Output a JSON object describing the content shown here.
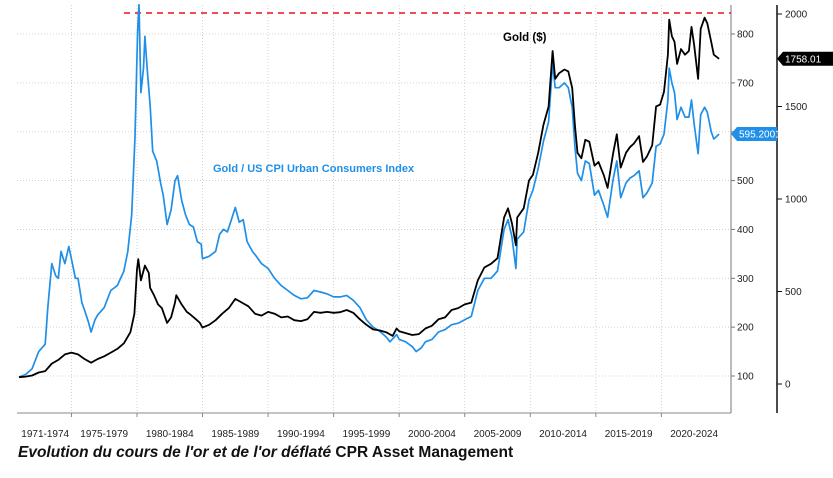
{
  "chart_data": {
    "type": "line",
    "caption_italic": "Evolution du cours de l'or et de l'or déflaté",
    "caption_source": "CPR Asset Management",
    "x_categories": [
      "1971-1974",
      "1975-1979",
      "1980-1984",
      "1985-1989",
      "1990-1994",
      "1995-1999",
      "2000-2004",
      "2005-2009",
      "2010-2014",
      "2015-2019",
      "2020-2024"
    ],
    "xlim": [
      1971,
      2024.7
    ],
    "left_axis": {
      "ticks": [
        100,
        200,
        300,
        400,
        500,
        600,
        700,
        800
      ],
      "ylim": [
        40,
        860
      ]
    },
    "right_axis": {
      "ticks": [
        0,
        500,
        1000,
        1500,
        2000
      ],
      "ylim": [
        -170,
        2025
      ]
    },
    "reference_line": {
      "value": 2000,
      "axis": "right",
      "style": "dashed",
      "color": "#e8141b"
    },
    "series": [
      {
        "name": "Gold ($)",
        "axis": "right",
        "color": "#000000",
        "last_value_label": "1758.01",
        "points": [
          [
            1971,
            37
          ],
          [
            1971.5,
            40
          ],
          [
            1972,
            46
          ],
          [
            1972.5,
            62
          ],
          [
            1973,
            70
          ],
          [
            1973.5,
            110
          ],
          [
            1974,
            130
          ],
          [
            1974.5,
            160
          ],
          [
            1975,
            170
          ],
          [
            1975.5,
            160
          ],
          [
            1976,
            135
          ],
          [
            1976.5,
            115
          ],
          [
            1977,
            135
          ],
          [
            1977.5,
            150
          ],
          [
            1978,
            170
          ],
          [
            1978.5,
            190
          ],
          [
            1979,
            220
          ],
          [
            1979.5,
            280
          ],
          [
            1979.8,
            380
          ],
          [
            1980,
            620
          ],
          [
            1980.1,
            675
          ],
          [
            1980.3,
            560
          ],
          [
            1980.6,
            640
          ],
          [
            1980.9,
            600
          ],
          [
            1981,
            520
          ],
          [
            1981.3,
            480
          ],
          [
            1981.6,
            430
          ],
          [
            1981.9,
            410
          ],
          [
            1982,
            390
          ],
          [
            1982.3,
            330
          ],
          [
            1982.6,
            360
          ],
          [
            1982.9,
            440
          ],
          [
            1983,
            480
          ],
          [
            1983.4,
            430
          ],
          [
            1983.8,
            390
          ],
          [
            1984,
            380
          ],
          [
            1984.5,
            350
          ],
          [
            1984.8,
            330
          ],
          [
            1985,
            305
          ],
          [
            1985.5,
            320
          ],
          [
            1986,
            345
          ],
          [
            1986.5,
            380
          ],
          [
            1987,
            410
          ],
          [
            1987.5,
            460
          ],
          [
            1988,
            440
          ],
          [
            1988.5,
            420
          ],
          [
            1989,
            380
          ],
          [
            1989.5,
            370
          ],
          [
            1990,
            390
          ],
          [
            1990.5,
            380
          ],
          [
            1991,
            360
          ],
          [
            1991.5,
            365
          ],
          [
            1992,
            345
          ],
          [
            1992.5,
            340
          ],
          [
            1993,
            350
          ],
          [
            1993.5,
            390
          ],
          [
            1994,
            385
          ],
          [
            1994.5,
            390
          ],
          [
            1995,
            385
          ],
          [
            1995.5,
            388
          ],
          [
            1996,
            400
          ],
          [
            1996.5,
            385
          ],
          [
            1997,
            350
          ],
          [
            1997.5,
            320
          ],
          [
            1998,
            295
          ],
          [
            1998.5,
            290
          ],
          [
            1999,
            280
          ],
          [
            1999.5,
            260
          ],
          [
            1999.8,
            300
          ],
          [
            2000,
            285
          ],
          [
            2000.5,
            275
          ],
          [
            2001,
            265
          ],
          [
            2001.5,
            270
          ],
          [
            2002,
            300
          ],
          [
            2002.5,
            315
          ],
          [
            2003,
            350
          ],
          [
            2003.5,
            360
          ],
          [
            2004,
            400
          ],
          [
            2004.5,
            410
          ],
          [
            2005,
            430
          ],
          [
            2005.5,
            440
          ],
          [
            2006,
            560
          ],
          [
            2006.5,
            630
          ],
          [
            2007,
            650
          ],
          [
            2007.5,
            680
          ],
          [
            2008,
            900
          ],
          [
            2008.3,
            950
          ],
          [
            2008.6,
            870
          ],
          [
            2008.9,
            750
          ],
          [
            2009,
            900
          ],
          [
            2009.5,
            950
          ],
          [
            2009.9,
            1100
          ],
          [
            2010.2,
            1130
          ],
          [
            2010.6,
            1250
          ],
          [
            2011,
            1400
          ],
          [
            2011.4,
            1500
          ],
          [
            2011.7,
            1800
          ],
          [
            2011.9,
            1650
          ],
          [
            2012.2,
            1680
          ],
          [
            2012.6,
            1700
          ],
          [
            2012.9,
            1690
          ],
          [
            2013.2,
            1600
          ],
          [
            2013.4,
            1400
          ],
          [
            2013.6,
            1250
          ],
          [
            2013.9,
            1220
          ],
          [
            2014.2,
            1320
          ],
          [
            2014.5,
            1310
          ],
          [
            2014.9,
            1180
          ],
          [
            2015.2,
            1200
          ],
          [
            2015.6,
            1130
          ],
          [
            2015.9,
            1060
          ],
          [
            2016.3,
            1240
          ],
          [
            2016.6,
            1350
          ],
          [
            2016.9,
            1170
          ],
          [
            2017.3,
            1250
          ],
          [
            2017.6,
            1280
          ],
          [
            2017.9,
            1300
          ],
          [
            2018.3,
            1340
          ],
          [
            2018.6,
            1200
          ],
          [
            2018.9,
            1230
          ],
          [
            2019.3,
            1290
          ],
          [
            2019.6,
            1500
          ],
          [
            2019.9,
            1510
          ],
          [
            2020.2,
            1580
          ],
          [
            2020.5,
            1780
          ],
          [
            2020.6,
            1970
          ],
          [
            2020.8,
            1880
          ],
          [
            2021,
            1850
          ],
          [
            2021.2,
            1730
          ],
          [
            2021.5,
            1810
          ],
          [
            2021.8,
            1780
          ],
          [
            2022.1,
            1800
          ],
          [
            2022.3,
            1930
          ],
          [
            2022.5,
            1830
          ],
          [
            2022.8,
            1650
          ],
          [
            2023,
            1920
          ],
          [
            2023.3,
            1980
          ],
          [
            2023.5,
            1950
          ],
          [
            2023.8,
            1850
          ],
          [
            2024,
            1780
          ],
          [
            2024.4,
            1758.01
          ]
        ]
      },
      {
        "name": "Gold  / US CPI Urban Consumers Index",
        "axis": "left",
        "color": "#1f8fe8",
        "last_value_label": "595.2001",
        "points": [
          [
            1971,
            98
          ],
          [
            1971.5,
            103
          ],
          [
            1972,
            115
          ],
          [
            1972.5,
            150
          ],
          [
            1973,
            165
          ],
          [
            1973.2,
            240
          ],
          [
            1973.5,
            330
          ],
          [
            1973.8,
            305
          ],
          [
            1974,
            300
          ],
          [
            1974.2,
            355
          ],
          [
            1974.5,
            330
          ],
          [
            1974.8,
            365
          ],
          [
            1975,
            340
          ],
          [
            1975.3,
            300
          ],
          [
            1975.5,
            300
          ],
          [
            1975.8,
            250
          ],
          [
            1976,
            235
          ],
          [
            1976.3,
            210
          ],
          [
            1976.5,
            190
          ],
          [
            1976.8,
            215
          ],
          [
            1977,
            225
          ],
          [
            1977.5,
            240
          ],
          [
            1978,
            275
          ],
          [
            1978.5,
            285
          ],
          [
            1979,
            315
          ],
          [
            1979.3,
            355
          ],
          [
            1979.6,
            430
          ],
          [
            1979.85,
            590
          ],
          [
            1980.05,
            805
          ],
          [
            1980.15,
            860
          ],
          [
            1980.3,
            680
          ],
          [
            1980.5,
            730
          ],
          [
            1980.6,
            795
          ],
          [
            1980.8,
            720
          ],
          [
            1981,
            655
          ],
          [
            1981.2,
            560
          ],
          [
            1981.5,
            540
          ],
          [
            1981.8,
            495
          ],
          [
            1982,
            470
          ],
          [
            1982.3,
            410
          ],
          [
            1982.6,
            440
          ],
          [
            1982.9,
            500
          ],
          [
            1983.1,
            510
          ],
          [
            1983.4,
            460
          ],
          [
            1983.7,
            430
          ],
          [
            1984,
            410
          ],
          [
            1984.3,
            405
          ],
          [
            1984.6,
            375
          ],
          [
            1984.9,
            370
          ],
          [
            1985,
            340
          ],
          [
            1985.5,
            345
          ],
          [
            1986,
            355
          ],
          [
            1986.3,
            390
          ],
          [
            1986.6,
            400
          ],
          [
            1986.9,
            395
          ],
          [
            1987.2,
            420
          ],
          [
            1987.5,
            445
          ],
          [
            1987.8,
            415
          ],
          [
            1988.1,
            420
          ],
          [
            1988.4,
            375
          ],
          [
            1988.8,
            355
          ],
          [
            1989.1,
            345
          ],
          [
            1989.5,
            330
          ],
          [
            1990,
            320
          ],
          [
            1990.5,
            300
          ],
          [
            1991,
            285
          ],
          [
            1991.5,
            275
          ],
          [
            1992,
            265
          ],
          [
            1992.5,
            258
          ],
          [
            1993,
            260
          ],
          [
            1993.5,
            275
          ],
          [
            1994,
            272
          ],
          [
            1994.5,
            268
          ],
          [
            1995,
            262
          ],
          [
            1995.5,
            262
          ],
          [
            1996,
            265
          ],
          [
            1996.5,
            255
          ],
          [
            1997,
            240
          ],
          [
            1997.5,
            215
          ],
          [
            1998,
            200
          ],
          [
            1998.5,
            192
          ],
          [
            1999,
            180
          ],
          [
            1999.3,
            170
          ],
          [
            1999.8,
            185
          ],
          [
            2000,
            175
          ],
          [
            2000.5,
            170
          ],
          [
            2001,
            160
          ],
          [
            2001.3,
            150
          ],
          [
            2001.7,
            158
          ],
          [
            2002,
            170
          ],
          [
            2002.5,
            175
          ],
          [
            2003,
            190
          ],
          [
            2003.5,
            195
          ],
          [
            2004,
            205
          ],
          [
            2004.5,
            208
          ],
          [
            2005,
            215
          ],
          [
            2005.5,
            222
          ],
          [
            2006,
            275
          ],
          [
            2006.5,
            300
          ],
          [
            2007,
            300
          ],
          [
            2007.5,
            315
          ],
          [
            2008,
            400
          ],
          [
            2008.3,
            420
          ],
          [
            2008.6,
            385
          ],
          [
            2008.9,
            320
          ],
          [
            2009,
            380
          ],
          [
            2009.5,
            395
          ],
          [
            2009.9,
            460
          ],
          [
            2010.2,
            480
          ],
          [
            2010.6,
            525
          ],
          [
            2011,
            580
          ],
          [
            2011.4,
            620
          ],
          [
            2011.7,
            740
          ],
          [
            2011.9,
            690
          ],
          [
            2012.2,
            690
          ],
          [
            2012.6,
            700
          ],
          [
            2012.9,
            690
          ],
          [
            2013.2,
            650
          ],
          [
            2013.4,
            570
          ],
          [
            2013.6,
            515
          ],
          [
            2013.9,
            500
          ],
          [
            2014.2,
            540
          ],
          [
            2014.5,
            535
          ],
          [
            2014.9,
            470
          ],
          [
            2015.2,
            480
          ],
          [
            2015.6,
            450
          ],
          [
            2015.9,
            425
          ],
          [
            2016.3,
            500
          ],
          [
            2016.6,
            540
          ],
          [
            2016.9,
            465
          ],
          [
            2017.3,
            495
          ],
          [
            2017.6,
            505
          ],
          [
            2017.9,
            510
          ],
          [
            2018.3,
            520
          ],
          [
            2018.6,
            465
          ],
          [
            2018.9,
            475
          ],
          [
            2019.3,
            495
          ],
          [
            2019.6,
            570
          ],
          [
            2019.9,
            575
          ],
          [
            2020.2,
            595
          ],
          [
            2020.5,
            665
          ],
          [
            2020.6,
            730
          ],
          [
            2020.8,
            700
          ],
          [
            2021,
            680
          ],
          [
            2021.2,
            625
          ],
          [
            2021.5,
            650
          ],
          [
            2021.8,
            630
          ],
          [
            2022.1,
            630
          ],
          [
            2022.3,
            665
          ],
          [
            2022.5,
            615
          ],
          [
            2022.8,
            555
          ],
          [
            2023,
            635
          ],
          [
            2023.3,
            650
          ],
          [
            2023.5,
            640
          ],
          [
            2023.8,
            600
          ],
          [
            2024,
            585
          ],
          [
            2024.4,
            595.2
          ]
        ]
      }
    ]
  }
}
